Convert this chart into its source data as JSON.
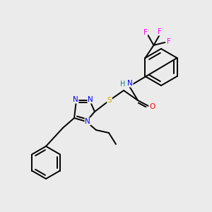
{
  "background_color": "#ebebeb",
  "atom_colors": {
    "C": "#000000",
    "N": "#0000ff",
    "O": "#ff0000",
    "S": "#ccaa00",
    "F": "#ff00ff",
    "H": "#008888"
  },
  "bond_lw": 1.4,
  "font_size": 7.5
}
